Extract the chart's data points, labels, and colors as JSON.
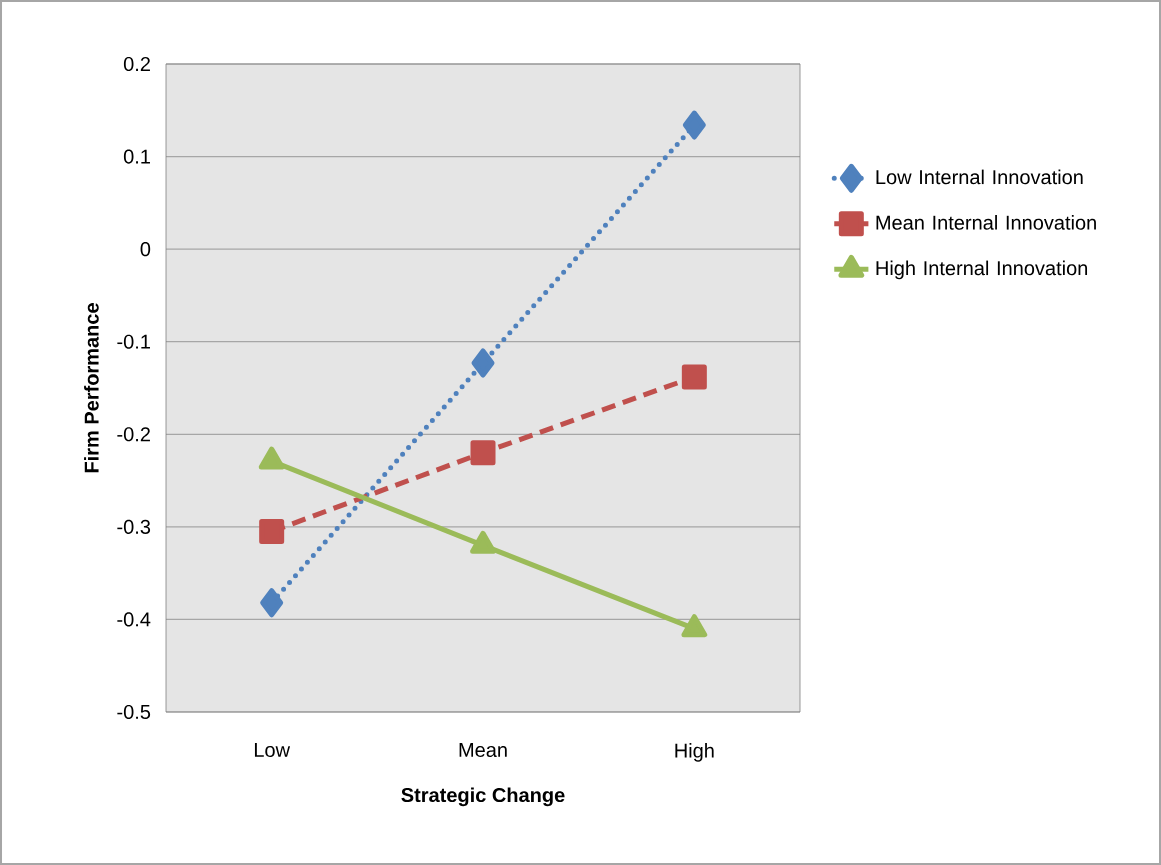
{
  "chart_data": {
    "type": "line",
    "xlabel": "Strategic Change",
    "ylabel": "Firm Performance",
    "categories": [
      "Low",
      "Mean",
      "High"
    ],
    "series": [
      {
        "name": "Low Internal Innovation",
        "color": "#4f81bd",
        "marker": "diamond",
        "line_style": "dotted",
        "values": [
          -0.382,
          -0.123,
          0.134
        ]
      },
      {
        "name": "Mean Internal Innovation",
        "color": "#c0504d",
        "marker": "square",
        "line_style": "dashed",
        "values": [
          -0.305,
          -0.22,
          -0.138
        ]
      },
      {
        "name": "High Internal Innovation",
        "color": "#9bbb59",
        "marker": "triangle",
        "line_style": "solid",
        "values": [
          -0.229,
          -0.32,
          -0.41
        ]
      }
    ],
    "ylim": [
      -0.5,
      0.2
    ],
    "yticks": [
      -0.5,
      -0.4,
      -0.3,
      -0.2,
      -0.1,
      0,
      0.1,
      0.2
    ],
    "grid": "y",
    "legend": "right"
  }
}
